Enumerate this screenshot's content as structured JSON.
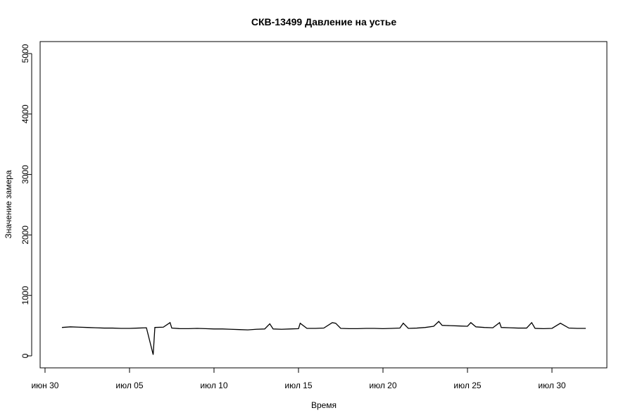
{
  "chart_data": {
    "type": "line",
    "title": "СКВ-13499 Давление на устье",
    "xlabel": "Время",
    "ylabel": "Значение замера",
    "xlim": [
      -0.29,
      33.25
    ],
    "xticks": [
      {
        "value": 0,
        "label": "июн 30"
      },
      {
        "value": 5,
        "label": "июл 05"
      },
      {
        "value": 10,
        "label": "июл 10"
      },
      {
        "value": 15,
        "label": "июл 15"
      },
      {
        "value": 20,
        "label": "июл 20"
      },
      {
        "value": 25,
        "label": "июл 25"
      },
      {
        "value": 30,
        "label": "июл 30"
      }
    ],
    "ylim": [
      -198,
      5198
    ],
    "yticks": [
      0,
      1000,
      2000,
      3000,
      4000,
      5000
    ],
    "series": [
      {
        "color": "#000000",
        "x": [
          1.0,
          1.5,
          2.0,
          2.5,
          3.0,
          3.5,
          4.0,
          4.5,
          5.0,
          5.5,
          6.0,
          6.4,
          6.5,
          7.0,
          7.4,
          7.5,
          8.0,
          8.5,
          9.0,
          9.5,
          10.0,
          10.5,
          11.0,
          11.5,
          12.0,
          12.5,
          13.0,
          13.3,
          13.5,
          14.0,
          14.5,
          15.0,
          15.1,
          15.5,
          16.0,
          16.5,
          17.0,
          17.2,
          17.5,
          18.0,
          18.5,
          19.0,
          19.5,
          20.0,
          20.5,
          21.0,
          21.2,
          21.5,
          22.0,
          22.5,
          23.0,
          23.3,
          23.5,
          24.0,
          24.5,
          25.0,
          25.2,
          25.5,
          26.0,
          26.5,
          26.9,
          27.0,
          27.5,
          28.0,
          28.5,
          28.8,
          29.0,
          29.5,
          30.0,
          30.5,
          31.0,
          31.5,
          32.0
        ],
        "values": [
          470,
          480,
          475,
          470,
          465,
          460,
          460,
          455,
          455,
          460,
          465,
          20,
          470,
          475,
          550,
          460,
          450,
          450,
          455,
          450,
          445,
          445,
          440,
          435,
          430,
          440,
          445,
          530,
          445,
          440,
          445,
          450,
          540,
          455,
          455,
          460,
          550,
          540,
          455,
          450,
          450,
          455,
          455,
          450,
          455,
          460,
          540,
          455,
          460,
          470,
          490,
          570,
          505,
          500,
          495,
          490,
          550,
          480,
          470,
          465,
          550,
          470,
          465,
          460,
          460,
          550,
          455,
          450,
          455,
          540,
          460,
          455,
          455
        ]
      }
    ]
  }
}
